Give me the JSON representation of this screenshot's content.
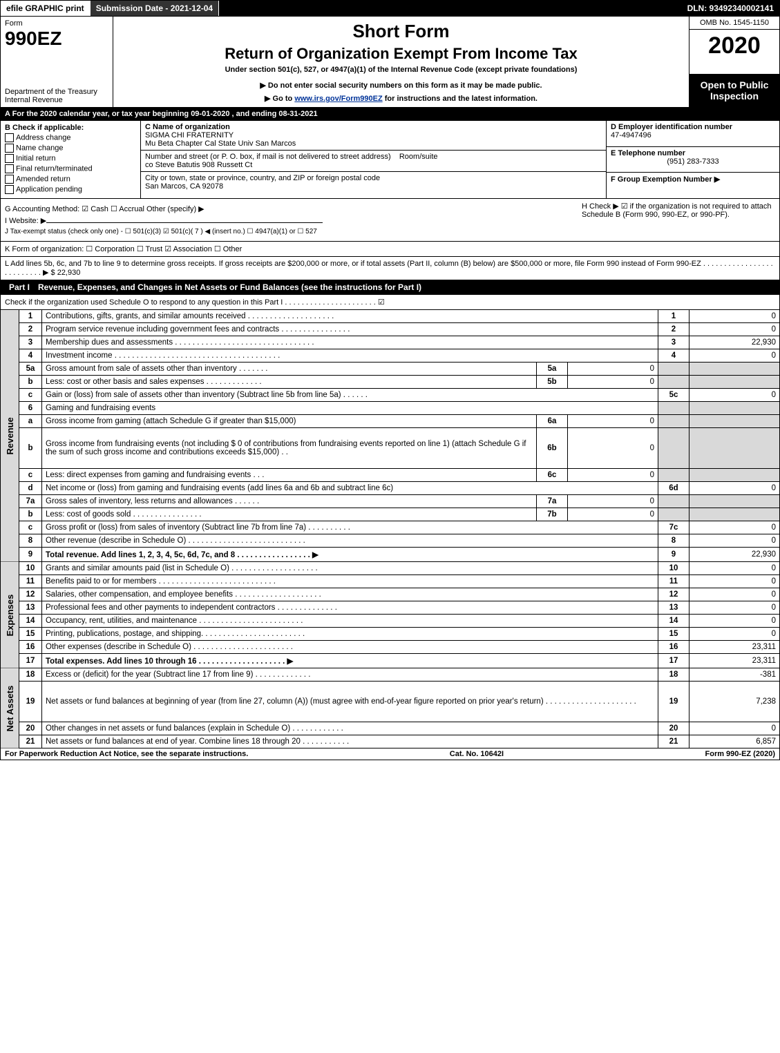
{
  "topbar": {
    "efile": "efile GRAPHIC print",
    "subdate_label": "Submission Date - 2021-12-04",
    "dln": "DLN: 93492340002141"
  },
  "header": {
    "form_label": "Form",
    "form_number": "990EZ",
    "dept": "Department of the Treasury\nInternal Revenue",
    "short_form": "Short Form",
    "return_title": "Return of Organization Exempt From Income Tax",
    "under": "Under section 501(c), 527, or 4947(a)(1) of the Internal Revenue Code (except private foundations)",
    "note1": "▶ Do not enter social security numbers on this form as it may be made public.",
    "note2_pre": "▶ Go to ",
    "note2_link": "www.irs.gov/Form990EZ",
    "note2_post": " for instructions and the latest information.",
    "omb": "OMB No. 1545-1150",
    "year": "2020",
    "open": "Open to Public Inspection"
  },
  "line_a": "A For the 2020 calendar year, or tax year beginning 09-01-2020 , and ending 08-31-2021",
  "section_b": {
    "label": "B Check if applicable:",
    "opts": [
      "Address change",
      "Name change",
      "Initial return",
      "Final return/terminated",
      "Amended return",
      "Application pending"
    ]
  },
  "org": {
    "c_label": "C Name of organization",
    "name1": "SIGMA CHI FRATERNITY",
    "name2": "Mu Beta Chapter Cal State Univ San Marcos",
    "addr_label": "Number and street (or P. O. box, if mail is not delivered to street address)",
    "room_label": "Room/suite",
    "addr": "co Steve Batutis 908 Russett Ct",
    "city_label": "City or town, state or province, country, and ZIP or foreign postal code",
    "city": "San Marcos, CA  92078"
  },
  "right_d": {
    "d_label": "D Employer identification number",
    "d_val": "47-4947496",
    "e_label": "E Telephone number",
    "e_val": "(951) 283-7333",
    "f_label": "F Group Exemption Number ▶"
  },
  "line_g": "G Accounting Method:  ☑ Cash  ☐ Accrual  Other (specify) ▶",
  "line_h": "H  Check ▶ ☑ if the organization is not required to attach Schedule B (Form 990, 990-EZ, or 990-PF).",
  "line_i": "I Website: ▶",
  "line_j": "J Tax-exempt status (check only one) - ☐ 501(c)(3) ☑ 501(c)( 7 ) ◀ (insert no.) ☐ 4947(a)(1) or ☐ 527",
  "line_k": "K Form of organization:  ☐ Corporation  ☐ Trust  ☑ Association  ☐ Other",
  "line_l": "L Add lines 5b, 6c, and 7b to line 9 to determine gross receipts. If gross receipts are $200,000 or more, or if total assets (Part II, column (B) below) are $500,000 or more, file Form 990 instead of Form 990-EZ . . . . . . . . . . . . . . . . . . . . . . . . . . ▶ $ 22,930",
  "part1": {
    "label": "Part I",
    "title": "Revenue, Expenses, and Changes in Net Assets or Fund Balances (see the instructions for Part I)",
    "check_line": "Check if the organization used Schedule O to respond to any question in this Part I . . . . . . . . . . . . . . . . . . . . . . ☑"
  },
  "vlabels": {
    "revenue": "Revenue",
    "expenses": "Expenses",
    "netassets": "Net Assets"
  },
  "rows": [
    {
      "n": "1",
      "desc": "Contributions, gifts, grants, and similar amounts received . . . . . . . . . . . . . . . . . . . .",
      "rnum": "1",
      "val": "0"
    },
    {
      "n": "2",
      "desc": "Program service revenue including government fees and contracts . . . . . . . . . . . . . . . .",
      "rnum": "2",
      "val": "0"
    },
    {
      "n": "3",
      "desc": "Membership dues and assessments . . . . . . . . . . . . . . . . . . . . . . . . . . . . . . . .",
      "rnum": "3",
      "val": "22,930"
    },
    {
      "n": "4",
      "desc": "Investment income . . . . . . . . . . . . . . . . . . . . . . . . . . . . . . . . . . . . . .",
      "rnum": "4",
      "val": "0"
    },
    {
      "n": "5a",
      "desc": "Gross amount from sale of assets other than inventory . . . . . . .",
      "mid": "5a",
      "midval": "0",
      "shade": true
    },
    {
      "n": "b",
      "desc": "Less: cost or other basis and sales expenses . . . . . . . . . . . . .",
      "mid": "5b",
      "midval": "0",
      "shade": true
    },
    {
      "n": "c",
      "desc": "Gain or (loss) from sale of assets other than inventory (Subtract line 5b from line 5a) . . . . . .",
      "rnum": "5c",
      "val": "0"
    },
    {
      "n": "6",
      "desc": "Gaming and fundraising events",
      "shade": true,
      "noval": true
    },
    {
      "n": "a",
      "desc": "Gross income from gaming (attach Schedule G if greater than $15,000)",
      "mid": "6a",
      "midval": "0",
      "shade": true
    },
    {
      "n": "b",
      "desc": "Gross income from fundraising events (not including $ 0         of contributions from fundraising events reported on line 1) (attach Schedule G if the sum of such gross income and contributions exceeds $15,000)   . .",
      "mid": "6b",
      "midval": "0",
      "shade": true,
      "tall": true
    },
    {
      "n": "c",
      "desc": "Less: direct expenses from gaming and fundraising events   . . .",
      "mid": "6c",
      "midval": "0",
      "shade": true
    },
    {
      "n": "d",
      "desc": "Net income or (loss) from gaming and fundraising events (add lines 6a and 6b and subtract line 6c)",
      "rnum": "6d",
      "val": "0"
    },
    {
      "n": "7a",
      "desc": "Gross sales of inventory, less returns and allowances . . . . . .",
      "mid": "7a",
      "midval": "0",
      "shade": true
    },
    {
      "n": "b",
      "desc": "Less: cost of goods sold     . . . . . . . . . . . . . . . .",
      "mid": "7b",
      "midval": "0",
      "shade": true
    },
    {
      "n": "c",
      "desc": "Gross profit or (loss) from sales of inventory (Subtract line 7b from line 7a) . . . . . . . . . .",
      "rnum": "7c",
      "val": "0"
    },
    {
      "n": "8",
      "desc": "Other revenue (describe in Schedule O) . . . . . . . . . . . . . . . . . . . . . . . . . . .",
      "rnum": "8",
      "val": "0"
    },
    {
      "n": "9",
      "desc": "Total revenue. Add lines 1, 2, 3, 4, 5c, 6d, 7c, and 8  . . . . . . . . . . . . . . . . .   ▶",
      "rnum": "9",
      "val": "22,930",
      "bold": true
    }
  ],
  "exp_rows": [
    {
      "n": "10",
      "desc": "Grants and similar amounts paid (list in Schedule O) . . . . . . . . . . . . . . . . . . . .",
      "rnum": "10",
      "val": "0"
    },
    {
      "n": "11",
      "desc": "Benefits paid to or for members     . . . . . . . . . . . . . . . . . . . . . . . . . . .",
      "rnum": "11",
      "val": "0"
    },
    {
      "n": "12",
      "desc": "Salaries, other compensation, and employee benefits . . . . . . . . . . . . . . . . . . . .",
      "rnum": "12",
      "val": "0"
    },
    {
      "n": "13",
      "desc": "Professional fees and other payments to independent contractors . . . . . . . . . . . . . .",
      "rnum": "13",
      "val": "0"
    },
    {
      "n": "14",
      "desc": "Occupancy, rent, utilities, and maintenance . . . . . . . . . . . . . . . . . . . . . . . .",
      "rnum": "14",
      "val": "0"
    },
    {
      "n": "15",
      "desc": "Printing, publications, postage, and shipping. . . . . . . . . . . . . . . . . . . . . . . .",
      "rnum": "15",
      "val": "0"
    },
    {
      "n": "16",
      "desc": "Other expenses (describe in Schedule O)    . . . . . . . . . . . . . . . . . . . . . . .",
      "rnum": "16",
      "val": "23,311"
    },
    {
      "n": "17",
      "desc": "Total expenses. Add lines 10 through 16    . . . . . . . . . . . . . . . . . . . .   ▶",
      "rnum": "17",
      "val": "23,311",
      "bold": true
    }
  ],
  "net_rows": [
    {
      "n": "18",
      "desc": "Excess or (deficit) for the year (Subtract line 17 from line 9)     . . . . . . . . . . . . .",
      "rnum": "18",
      "val": "-381"
    },
    {
      "n": "19",
      "desc": "Net assets or fund balances at beginning of year (from line 27, column (A)) (must agree with end-of-year figure reported on prior year's return) . . . . . . . . . . . . . . . . . . . . .",
      "rnum": "19",
      "val": "7,238",
      "tall": true
    },
    {
      "n": "20",
      "desc": "Other changes in net assets or fund balances (explain in Schedule O) . . . . . . . . . . . .",
      "rnum": "20",
      "val": "0"
    },
    {
      "n": "21",
      "desc": "Net assets or fund balances at end of year. Combine lines 18 through 20 . . . . . . . . . . .",
      "rnum": "21",
      "val": "6,857"
    }
  ],
  "footer": {
    "left": "For Paperwork Reduction Act Notice, see the separate instructions.",
    "mid": "Cat. No. 10642I",
    "right": "Form 990-EZ (2020)"
  }
}
